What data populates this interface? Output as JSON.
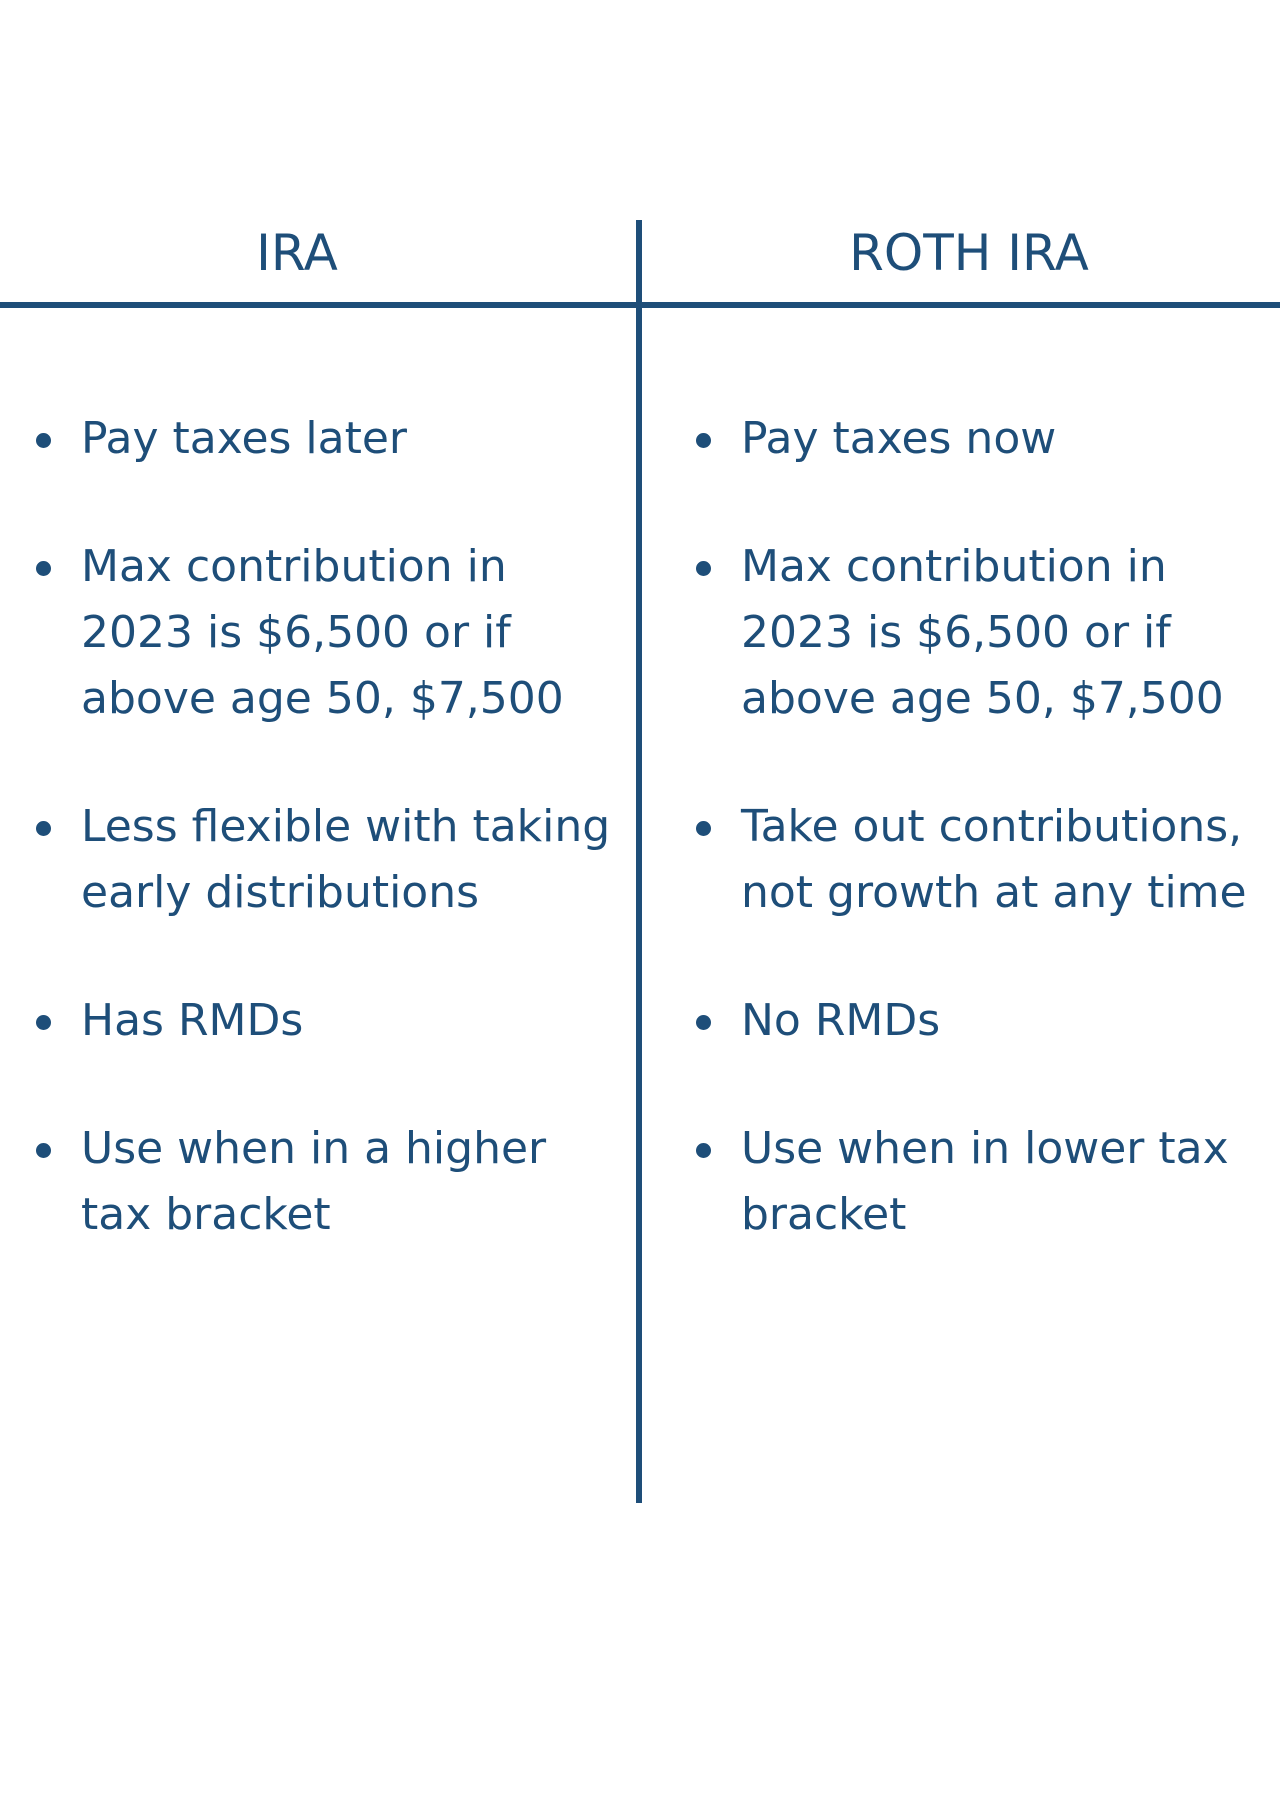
{
  "columns": [
    {
      "title": "IRA",
      "items": [
        "Pay taxes later",
        "Max contribution in 2023 is $6,500 or if above age 50, $7,500",
        "Less flexible with taking early distributions",
        "Has RMDs",
        "Use when in a higher tax bracket"
      ]
    },
    {
      "title": "ROTH IRA",
      "items": [
        "Pay taxes now",
        "Max contribution in 2023 is $6,500 or if above age 50, $7,500",
        "Take out contributions, not growth at any time",
        "No RMDs",
        "Use when in lower tax bracket"
      ]
    }
  ],
  "colors": {
    "accent": "#1e4e79",
    "background": "#ffffff"
  }
}
